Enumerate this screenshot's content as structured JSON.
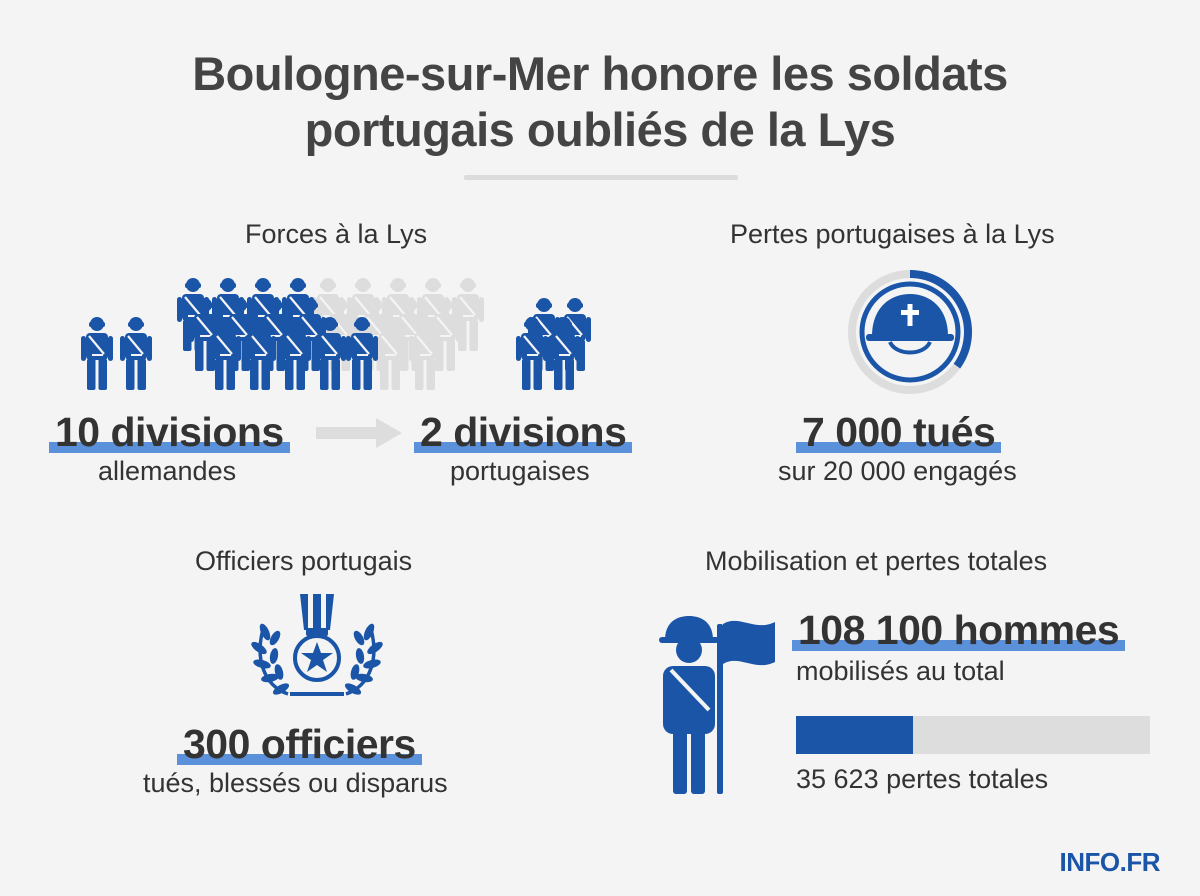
{
  "title": {
    "line1": "Boulogne-sur-Mer honore les soldats",
    "line2": "portugais oubliés de la Lys"
  },
  "colors": {
    "accent": "#1a55a8",
    "highlight": "#3f7fd6",
    "muted": "#dddddd",
    "text": "#333333"
  },
  "forces": {
    "heading": "Forces à la Lys",
    "german_value": "10 divisions",
    "german_label": "allemandes",
    "portuguese_value": "2 divisions",
    "portuguese_label": "portugaises",
    "icon": "soldier-icon"
  },
  "losses": {
    "heading": "Pertes portugaises à la Lys",
    "value": "7 000 tués",
    "label": "sur 20 000 engagés",
    "killed": 7000,
    "engaged": 20000,
    "icon": "helmet-cross-icon"
  },
  "officers": {
    "heading": "Officiers portugais",
    "value": "300 officiers",
    "label": "tués, blessés ou disparus",
    "icon": "medal-laurel-icon"
  },
  "mobilisation": {
    "heading": "Mobilisation et pertes totales",
    "value": "108 100 hommes",
    "label": "mobilisés au total",
    "losses_label": "35 623 pertes totales",
    "mobilised": 108100,
    "losses": 35623,
    "icon": "soldier-flag-icon"
  },
  "logo": "INFO.FR"
}
